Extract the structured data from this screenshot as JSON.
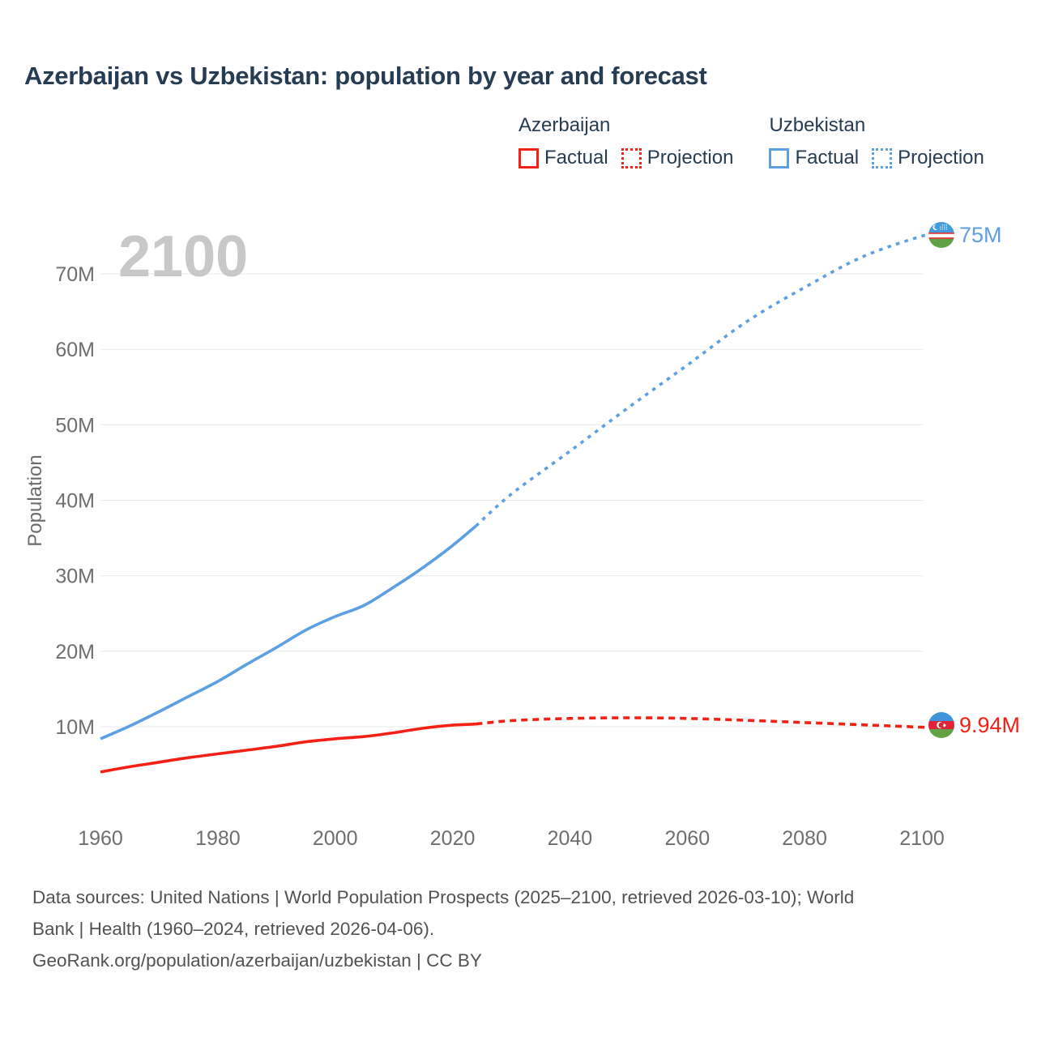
{
  "title": "Azerbaijan vs Uzbekistan: population by year and forecast",
  "legend": {
    "groups": [
      {
        "name": "Azerbaijan",
        "color": "#f52015",
        "items": [
          {
            "label": "Factual",
            "style": "solid"
          },
          {
            "label": "Projection",
            "style": "dotted"
          }
        ]
      },
      {
        "name": "Uzbekistan",
        "color": "#5d9fe3",
        "items": [
          {
            "label": "Factual",
            "style": "solid"
          },
          {
            "label": "Projection",
            "style": "dotted"
          }
        ]
      }
    ]
  },
  "chart_data": {
    "type": "line",
    "title": "Azerbaijan vs Uzbekistan: population by year and forecast",
    "xlabel": "",
    "ylabel": "Population",
    "watermark": "2100",
    "grid": true,
    "xlim": [
      1960,
      2100
    ],
    "ylim": [
      0,
      78
    ],
    "x_ticks": [
      1960,
      1980,
      2000,
      2020,
      2040,
      2060,
      2080,
      2100
    ],
    "y_ticks": [
      {
        "value": 10,
        "label": "10M"
      },
      {
        "value": 20,
        "label": "20M"
      },
      {
        "value": 30,
        "label": "30M"
      },
      {
        "value": 40,
        "label": "40M"
      },
      {
        "value": 50,
        "label": "50M"
      },
      {
        "value": 60,
        "label": "60M"
      },
      {
        "value": 70,
        "label": "70M"
      }
    ],
    "series": [
      {
        "name": "Azerbaijan Factual",
        "country": "Azerbaijan",
        "kind": "Factual",
        "line_style": "solid",
        "color": "#f52015",
        "points": [
          [
            1960,
            4.0
          ],
          [
            1965,
            4.7
          ],
          [
            1970,
            5.3
          ],
          [
            1975,
            5.9
          ],
          [
            1980,
            6.4
          ],
          [
            1985,
            6.9
          ],
          [
            1990,
            7.4
          ],
          [
            1995,
            8.0
          ],
          [
            2000,
            8.4
          ],
          [
            2005,
            8.7
          ],
          [
            2010,
            9.2
          ],
          [
            2015,
            9.8
          ],
          [
            2020,
            10.2
          ],
          [
            2024,
            10.35
          ]
        ]
      },
      {
        "name": "Azerbaijan Projection",
        "country": "Azerbaijan",
        "kind": "Projection",
        "line_style": "dotted",
        "color": "#f52015",
        "points": [
          [
            2024,
            10.35
          ],
          [
            2030,
            10.8
          ],
          [
            2040,
            11.1
          ],
          [
            2050,
            11.18
          ],
          [
            2060,
            11.1
          ],
          [
            2070,
            10.85
          ],
          [
            2080,
            10.55
          ],
          [
            2090,
            10.25
          ],
          [
            2100,
            9.94
          ]
        ]
      },
      {
        "name": "Uzbekistan Factual",
        "country": "Uzbekistan",
        "kind": "Factual",
        "line_style": "solid",
        "color": "#5d9fe3",
        "points": [
          [
            1960,
            8.4
          ],
          [
            1965,
            10.1
          ],
          [
            1970,
            12.0
          ],
          [
            1975,
            14.0
          ],
          [
            1980,
            16.0
          ],
          [
            1985,
            18.3
          ],
          [
            1990,
            20.5
          ],
          [
            1995,
            22.8
          ],
          [
            2000,
            24.6
          ],
          [
            2005,
            26.1
          ],
          [
            2010,
            28.5
          ],
          [
            2015,
            31.1
          ],
          [
            2020,
            34.0
          ],
          [
            2024,
            36.6
          ]
        ]
      },
      {
        "name": "Uzbekistan Projection",
        "country": "Uzbekistan",
        "kind": "Projection",
        "line_style": "dotted",
        "color": "#5d9fe3",
        "points": [
          [
            2024,
            36.6
          ],
          [
            2030,
            40.8
          ],
          [
            2040,
            46.5
          ],
          [
            2050,
            52.3
          ],
          [
            2060,
            57.9
          ],
          [
            2070,
            63.6
          ],
          [
            2080,
            68.2
          ],
          [
            2090,
            72.3
          ],
          [
            2100,
            75.0
          ]
        ]
      }
    ],
    "end_labels": [
      {
        "series": "Uzbekistan",
        "text": "75M",
        "color": "#5d9fe3",
        "flag": "uzbekistan"
      },
      {
        "series": "Azerbaijan",
        "text": "9.94M",
        "color": "#f52015",
        "flag": "azerbaijan"
      }
    ]
  },
  "footer": {
    "lines": [
      "Data sources: United Nations | World Population Prospects (2025–2100, retrieved 2026-03-10); World",
      "Bank | Health (1960–2024, retrieved 2026-04-06).",
      "GeoRank.org/population/azerbaijan/uzbekistan | CC BY"
    ]
  }
}
